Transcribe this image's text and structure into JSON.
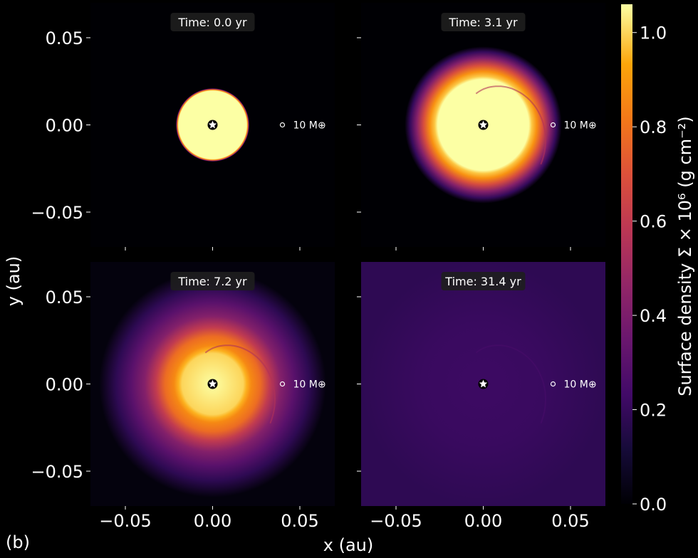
{
  "panel_label": "(b)",
  "chart_data": {
    "type": "heatmap",
    "xlabel": "x (au)",
    "ylabel": "y (au)",
    "xlim": [
      -0.07,
      0.07
    ],
    "ylim": [
      -0.07,
      0.07
    ],
    "x_ticks": [
      -0.05,
      0.0,
      0.05
    ],
    "x_tick_labels": [
      "−0.05",
      "0.00",
      "0.05"
    ],
    "y_ticks": [
      0.05,
      0.0,
      -0.05
    ],
    "y_tick_labels": [
      "0.05",
      "0.00",
      "−0.05"
    ],
    "colorbar": {
      "label": "Surface density Σ × 10⁶ (g cm⁻²)",
      "colormap": "inferno",
      "range": [
        0.0,
        1.06
      ],
      "ticks": [
        0.0,
        0.2,
        0.4,
        0.6,
        0.8,
        1.0
      ],
      "tick_labels": [
        "0.0",
        "0.2",
        "0.4",
        "0.6",
        "0.8",
        "1.0"
      ]
    },
    "planet": {
      "label": "10 M⊕",
      "x": 0.04,
      "y": 0.0
    },
    "star": {
      "x": 0.0,
      "y": 0.0
    },
    "panels": [
      {
        "time_label": "Time:  0.0 yr",
        "time_yr": 0.0,
        "disk_core_radius": 0.02,
        "disk_edge": 0.021,
        "peak_density": 1.06,
        "floor_density": 0.0
      },
      {
        "time_label": "Time:  3.1 yr",
        "time_yr": 3.1,
        "disk_core_radius": 0.027,
        "disk_edge": 0.045,
        "peak_density": 1.06,
        "floor_density": 0.0
      },
      {
        "time_label": "Time:  7.2 yr",
        "time_yr": 7.2,
        "disk_core_radius": 0.018,
        "disk_edge": 0.065,
        "peak_density": 1.06,
        "floor_density": 0.02
      },
      {
        "time_label": "Time:  31.4 yr",
        "time_yr": 31.4,
        "disk_core_radius": 0.0,
        "disk_edge": 0.07,
        "peak_density": 0.22,
        "floor_density": 0.18
      }
    ]
  }
}
